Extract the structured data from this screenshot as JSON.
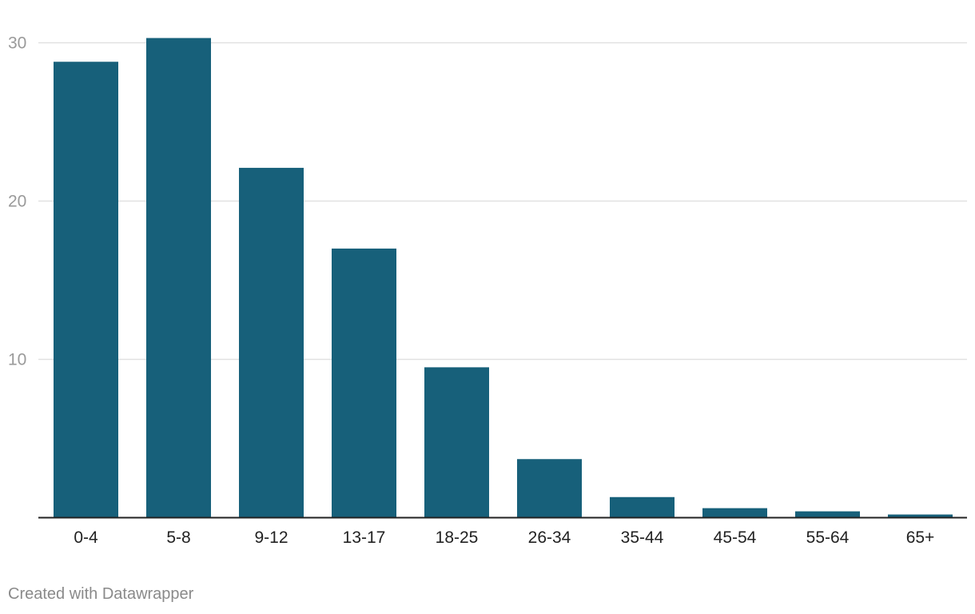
{
  "chart_data": {
    "type": "bar",
    "categories": [
      "0-4",
      "5-8",
      "9-12",
      "13-17",
      "18-25",
      "26-34",
      "35-44",
      "45-54",
      "55-64",
      "65+"
    ],
    "values": [
      28.8,
      30.3,
      22.1,
      17.0,
      9.5,
      3.7,
      1.3,
      0.6,
      0.4,
      0.2
    ],
    "yticks": [
      "10",
      "20",
      "30"
    ],
    "ylim": [
      0,
      30
    ],
    "grid": true,
    "bar_color": "#17607a",
    "title": "",
    "xlabel": "",
    "ylabel": ""
  },
  "footer": {
    "credit": "Created with Datawrapper"
  }
}
